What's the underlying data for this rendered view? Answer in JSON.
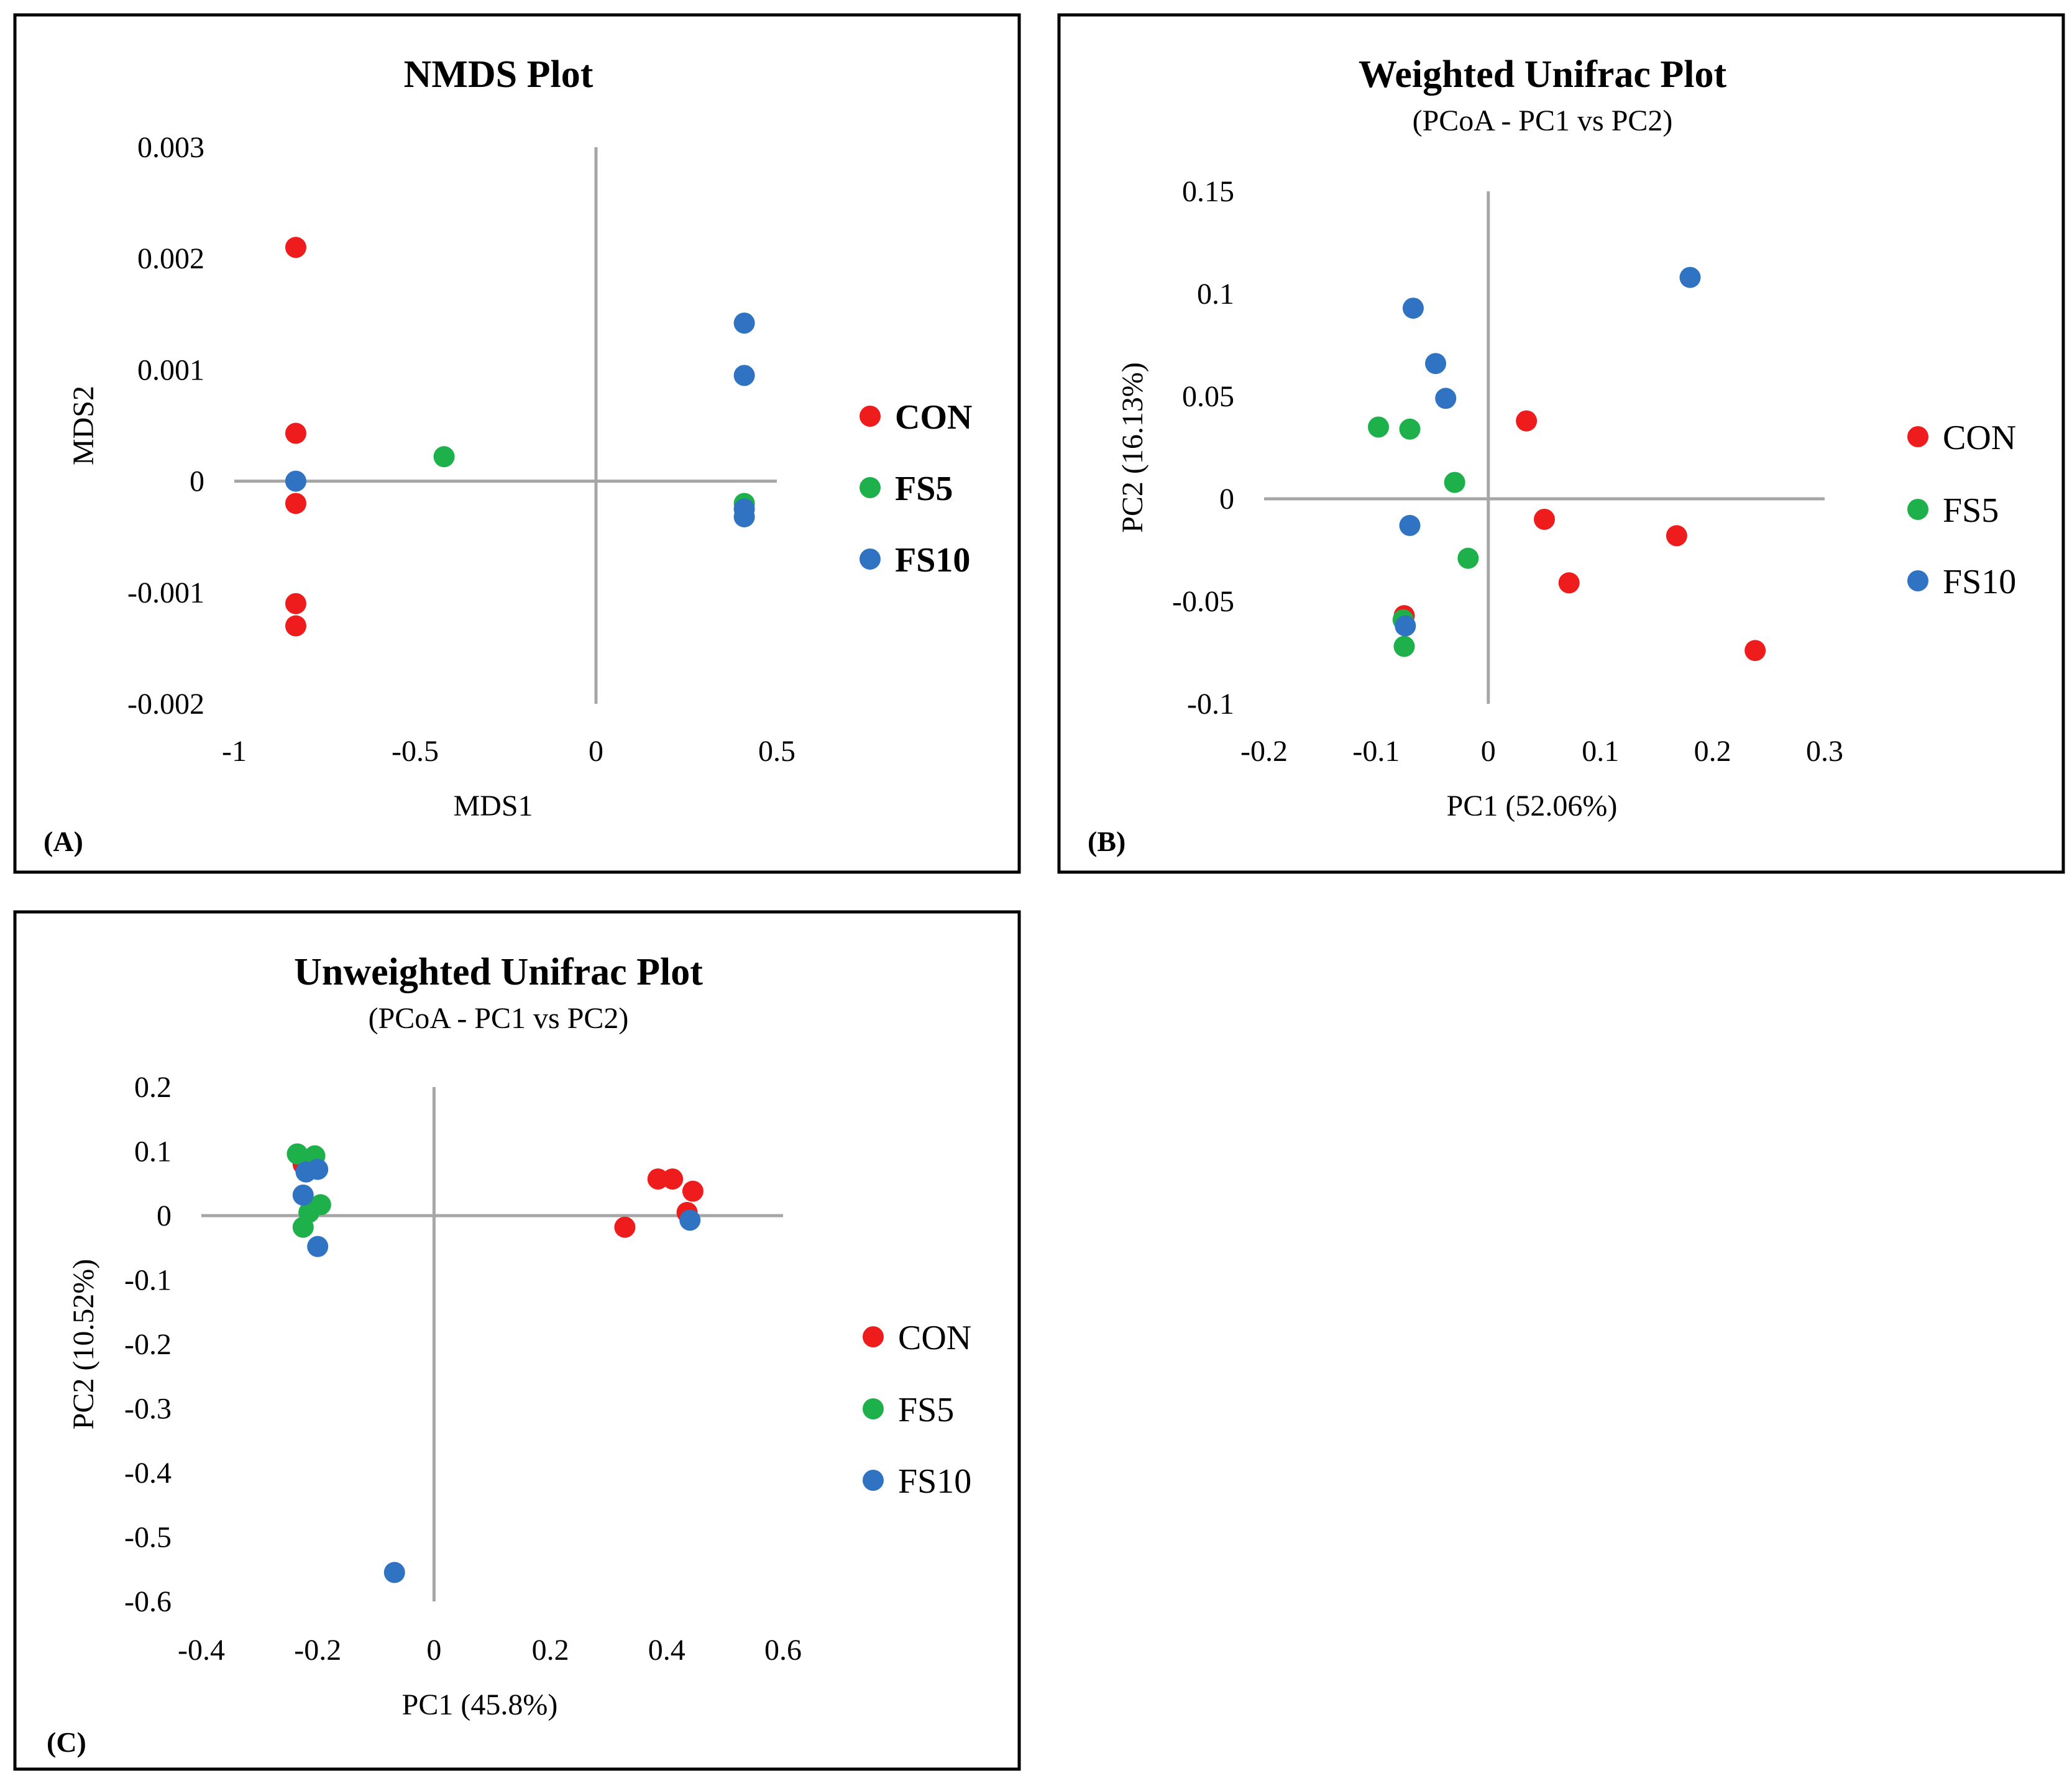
{
  "chart_data": [
    {
      "type": "scatter",
      "panel_label": "(A)",
      "title": "NMDS Plot",
      "subtitle": "",
      "xlabel": "MDS1",
      "ylabel": "MDS2",
      "xlim": [
        -1,
        0.5
      ],
      "ylim": [
        -0.002,
        0.003
      ],
      "xticks": [
        "-1",
        "-0.5",
        "0",
        "0.5"
      ],
      "yticks": [
        "0.003",
        "0.002",
        "0.001",
        "0",
        "-0.001",
        "-0.002"
      ],
      "legend_bold": true,
      "legend_position": "right",
      "series": [
        {
          "name": "CON",
          "color": "#ee1c1c",
          "points": [
            [
              -0.83,
              0.0021
            ],
            [
              -0.83,
              0.00043
            ],
            [
              -0.83,
              -0.0002
            ],
            [
              -0.83,
              -0.0011
            ],
            [
              -0.83,
              -0.0013
            ]
          ]
        },
        {
          "name": "FS5",
          "color": "#1eb04b",
          "points": [
            [
              -0.42,
              0.00022
            ],
            [
              0.41,
              -0.0002
            ]
          ]
        },
        {
          "name": "FS10",
          "color": "#2f73c2",
          "points": [
            [
              -0.83,
              0.0
            ],
            [
              0.41,
              0.00142
            ],
            [
              0.41,
              0.00095
            ],
            [
              0.41,
              -0.00025
            ],
            [
              0.41,
              -0.00032
            ]
          ]
        }
      ]
    },
    {
      "type": "scatter",
      "panel_label": "(B)",
      "title": "Weighted Unifrac Plot",
      "subtitle": "(PCoA - PC1 vs PC2)",
      "xlabel": "PC1 (52.06%)",
      "ylabel": "PC2 (16.13%)",
      "xlim": [
        -0.2,
        0.3
      ],
      "ylim": [
        -0.1,
        0.15
      ],
      "xticks": [
        "-0.2",
        "-0.1",
        "0",
        "0.1",
        "0.2",
        "0.3"
      ],
      "yticks": [
        "0.15",
        "0.1",
        "0.05",
        "0",
        "-0.05",
        "-0.1"
      ],
      "legend_bold": false,
      "legend_position": "right",
      "series": [
        {
          "name": "CON",
          "color": "#ee1c1c",
          "points": [
            [
              0.034,
              0.038
            ],
            [
              0.05,
              -0.01
            ],
            [
              0.072,
              -0.041
            ],
            [
              0.168,
              -0.018
            ],
            [
              0.238,
              -0.074
            ],
            [
              -0.075,
              -0.057
            ]
          ]
        },
        {
          "name": "FS5",
          "color": "#1eb04b",
          "points": [
            [
              -0.098,
              0.035
            ],
            [
              -0.07,
              0.034
            ],
            [
              -0.03,
              0.008
            ],
            [
              -0.018,
              -0.029
            ],
            [
              -0.076,
              -0.059
            ],
            [
              -0.075,
              -0.072
            ]
          ]
        },
        {
          "name": "FS10",
          "color": "#2f73c2",
          "points": [
            [
              -0.067,
              0.093
            ],
            [
              -0.047,
              0.066
            ],
            [
              -0.038,
              0.049
            ],
            [
              0.18,
              0.108
            ],
            [
              -0.07,
              -0.013
            ],
            [
              -0.074,
              -0.062
            ]
          ]
        }
      ]
    },
    {
      "type": "scatter",
      "panel_label": "(C)",
      "title": "Unweighted Unifrac Plot",
      "subtitle": "(PCoA - PC1 vs PC2)",
      "xlabel": "PC1 (45.8%)",
      "ylabel": "PC2 (10.52%)",
      "xlim": [
        -0.4,
        0.6
      ],
      "ylim": [
        -0.6,
        0.2
      ],
      "xticks": [
        "-0.4",
        "-0.2",
        "0",
        "0.2",
        "0.4",
        "0.6"
      ],
      "yticks": [
        "0.2",
        "0.1",
        "0",
        "-0.1",
        "-0.2",
        "-0.3",
        "-0.4",
        "-0.5",
        "-0.6"
      ],
      "legend_bold": false,
      "legend_position": "right",
      "series": [
        {
          "name": "CON",
          "color": "#ee1c1c",
          "points": [
            [
              0.385,
              0.057
            ],
            [
              0.41,
              0.057
            ],
            [
              0.445,
              0.038
            ],
            [
              0.435,
              0.005
            ],
            [
              0.328,
              -0.018
            ],
            [
              -0.225,
              0.08
            ]
          ]
        },
        {
          "name": "FS5",
          "color": "#1eb04b",
          "points": [
            [
              -0.235,
              0.096
            ],
            [
              -0.205,
              0.093
            ],
            [
              -0.195,
              0.017
            ],
            [
              -0.215,
              0.005
            ],
            [
              -0.225,
              -0.018
            ]
          ]
        },
        {
          "name": "FS10",
          "color": "#2f73c2",
          "points": [
            [
              -0.2,
              0.072
            ],
            [
              -0.22,
              0.068
            ],
            [
              -0.225,
              0.032
            ],
            [
              -0.2,
              -0.048
            ],
            [
              0.44,
              -0.007
            ],
            [
              -0.068,
              -0.555
            ]
          ]
        }
      ]
    }
  ]
}
